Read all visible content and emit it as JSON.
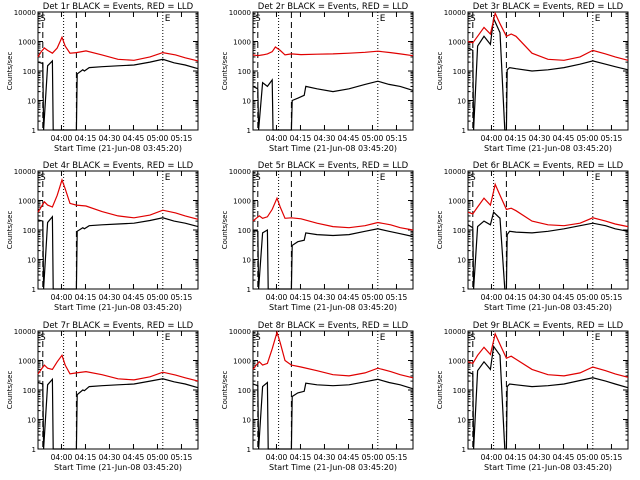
{
  "colors": {
    "events": "#000000",
    "lld": "#e00000",
    "axes": "#000000",
    "background": "#ffffff"
  },
  "shared": {
    "xlabel": "Start Time (21-Jun-08 03:45:20)",
    "ylabel": "Counts/sec",
    "y_scale": "log",
    "ylim": [
      1,
      10000
    ],
    "y_ticks": [
      "1",
      "10",
      "100",
      "1000",
      "10000"
    ],
    "x_range_min_after_start": [
      0,
      100
    ],
    "x_ticks": [
      "04:00",
      "04:15",
      "04:30",
      "04:45",
      "05:00",
      "05:15"
    ],
    "x_tick_minutes": [
      14.67,
      29.67,
      44.67,
      59.67,
      74.67,
      89.67
    ],
    "markers": {
      "S": "S",
      "E": "E"
    },
    "dashed_lines_min": [
      3.0,
      24.0
    ],
    "dotted_lines_min": [
      16.0,
      78.0
    ]
  },
  "chart_data": [
    {
      "type": "line",
      "title": "Det 1r BLACK = Events, RED = LLD",
      "series": [
        {
          "name": "Events",
          "x": [
            0,
            3,
            3.5,
            6,
            9,
            9.5,
            24,
            24.5,
            28,
            29,
            32,
            40,
            50,
            60,
            70,
            78,
            85,
            92,
            100
          ],
          "y": [
            200,
            180,
            1,
            150,
            220,
            1,
            1,
            80,
            110,
            100,
            130,
            140,
            150,
            160,
            200,
            250,
            190,
            160,
            120
          ]
        },
        {
          "name": "LLD",
          "x": [
            0,
            2,
            4,
            6,
            9,
            12,
            15,
            17,
            20,
            24,
            30,
            40,
            50,
            60,
            70,
            78,
            86,
            92,
            100
          ],
          "y": [
            300,
            450,
            600,
            500,
            400,
            600,
            1400,
            700,
            400,
            420,
            480,
            350,
            250,
            230,
            300,
            420,
            350,
            280,
            220
          ]
        }
      ]
    },
    {
      "type": "line",
      "title": "Det 2r BLACK = Events, RED = LLD",
      "series": [
        {
          "name": "Events",
          "x": [
            0,
            3,
            3.5,
            6,
            9,
            12,
            12.5,
            24,
            24.5,
            28,
            32,
            33,
            40,
            50,
            60,
            70,
            78,
            85,
            92,
            100
          ],
          "y": [
            30,
            25,
            1,
            40,
            30,
            50,
            1,
            1,
            10,
            12,
            15,
            30,
            25,
            20,
            25,
            35,
            45,
            35,
            30,
            22
          ]
        },
        {
          "name": "LLD",
          "x": [
            0,
            3,
            6,
            9,
            12,
            14,
            17,
            20,
            24,
            30,
            40,
            50,
            60,
            70,
            78,
            86,
            92,
            100
          ],
          "y": [
            350,
            330,
            350,
            380,
            450,
            650,
            500,
            350,
            380,
            360,
            370,
            380,
            400,
            430,
            470,
            420,
            380,
            330
          ]
        }
      ]
    },
    {
      "type": "line",
      "title": "Det 3r BLACK = Events, RED = LLD",
      "series": [
        {
          "name": "Events",
          "x": [
            0,
            3,
            3.5,
            6,
            10,
            14,
            16,
            20,
            23,
            24,
            24.5,
            26,
            30,
            40,
            50,
            60,
            70,
            78,
            86,
            92,
            100
          ],
          "y": [
            600,
            500,
            1,
            700,
            1500,
            800,
            6000,
            2000,
            1,
            1,
            110,
            130,
            120,
            100,
            110,
            130,
            170,
            220,
            170,
            140,
            110
          ]
        },
        {
          "name": "LLD",
          "x": [
            0,
            3,
            6,
            10,
            14,
            17,
            20,
            24,
            27,
            30,
            40,
            50,
            60,
            70,
            78,
            86,
            92,
            100
          ],
          "y": [
            1000,
            900,
            1500,
            3000,
            1800,
            9000,
            4000,
            1500,
            1800,
            1500,
            400,
            250,
            230,
            300,
            500,
            380,
            300,
            230
          ]
        }
      ]
    },
    {
      "type": "line",
      "title": "Det 4r BLACK = Events, RED = LLD",
      "series": [
        {
          "name": "Events",
          "x": [
            0,
            3,
            3.5,
            6,
            9,
            9.5,
            24,
            24.5,
            28,
            29,
            32,
            40,
            50,
            60,
            70,
            78,
            85,
            92,
            100
          ],
          "y": [
            220,
            200,
            1,
            180,
            280,
            1,
            1,
            90,
            120,
            110,
            140,
            150,
            160,
            170,
            210,
            260,
            200,
            170,
            130
          ]
        },
        {
          "name": "LLD",
          "x": [
            0,
            2,
            4,
            6,
            9,
            12,
            15,
            17,
            20,
            24,
            30,
            40,
            50,
            60,
            70,
            78,
            86,
            92,
            100
          ],
          "y": [
            400,
            600,
            900,
            700,
            600,
            1500,
            5000,
            2500,
            800,
            700,
            650,
            420,
            300,
            260,
            320,
            470,
            380,
            300,
            230
          ]
        }
      ]
    },
    {
      "type": "line",
      "title": "Det 5r BLACK = Events, RED = LLD",
      "series": [
        {
          "name": "Events",
          "x": [
            0,
            3,
            3.5,
            6,
            9,
            9.5,
            24,
            24.5,
            28,
            32,
            33,
            40,
            50,
            60,
            70,
            78,
            85,
            92,
            100
          ],
          "y": [
            100,
            90,
            1,
            80,
            100,
            1,
            1,
            30,
            40,
            45,
            80,
            70,
            65,
            70,
            90,
            110,
            90,
            75,
            60
          ]
        },
        {
          "name": "LLD",
          "x": [
            0,
            2,
            4,
            6,
            9,
            12,
            15,
            17,
            20,
            24,
            30,
            40,
            50,
            60,
            70,
            78,
            86,
            92,
            100
          ],
          "y": [
            200,
            250,
            300,
            250,
            280,
            500,
            1200,
            600,
            250,
            260,
            240,
            170,
            130,
            120,
            140,
            180,
            150,
            120,
            100
          ]
        }
      ]
    },
    {
      "type": "line",
      "title": "Det 6r BLACK = Events, RED = LLD",
      "series": [
        {
          "name": "Events",
          "x": [
            0,
            3,
            3.5,
            6,
            10,
            14,
            16,
            20,
            23,
            24,
            24.5,
            26,
            30,
            40,
            50,
            60,
            70,
            78,
            86,
            92,
            100
          ],
          "y": [
            150,
            120,
            1,
            130,
            200,
            150,
            400,
            250,
            1,
            1,
            70,
            90,
            85,
            80,
            90,
            110,
            140,
            170,
            140,
            110,
            90
          ]
        },
        {
          "name": "LLD",
          "x": [
            0,
            3,
            6,
            10,
            14,
            17,
            20,
            24,
            27,
            30,
            40,
            50,
            60,
            70,
            78,
            86,
            92,
            100
          ],
          "y": [
            400,
            350,
            600,
            1200,
            700,
            3500,
            1500,
            500,
            550,
            450,
            200,
            150,
            140,
            170,
            260,
            200,
            160,
            130
          ]
        }
      ]
    },
    {
      "type": "line",
      "title": "Det 7r BLACK = Events, RED = LLD",
      "series": [
        {
          "name": "Events",
          "x": [
            0,
            3,
            3.5,
            6,
            9,
            9.5,
            24,
            24.5,
            28,
            29,
            32,
            40,
            50,
            60,
            70,
            78,
            85,
            92,
            100
          ],
          "y": [
            180,
            160,
            1,
            150,
            230,
            1,
            1,
            70,
            100,
            95,
            130,
            140,
            150,
            160,
            200,
            240,
            190,
            160,
            120
          ]
        },
        {
          "name": "LLD",
          "x": [
            0,
            2,
            4,
            6,
            9,
            12,
            15,
            17,
            20,
            24,
            30,
            40,
            50,
            60,
            70,
            78,
            86,
            92,
            100
          ],
          "y": [
            350,
            500,
            700,
            550,
            500,
            900,
            1500,
            700,
            350,
            380,
            420,
            330,
            240,
            220,
            280,
            400,
            320,
            260,
            200
          ]
        }
      ]
    },
    {
      "type": "line",
      "title": "Det 8r BLACK = Events, RED = LLD",
      "series": [
        {
          "name": "Events",
          "x": [
            0,
            3,
            3.5,
            6,
            9,
            9.5,
            24,
            24.5,
            28,
            32,
            33,
            40,
            50,
            60,
            70,
            78,
            85,
            92,
            100
          ],
          "y": [
            160,
            140,
            1,
            130,
            180,
            1,
            1,
            60,
            80,
            90,
            170,
            150,
            140,
            150,
            190,
            230,
            180,
            150,
            110
          ]
        },
        {
          "name": "LLD",
          "x": [
            0,
            2,
            4,
            6,
            9,
            12,
            15,
            17,
            20,
            24,
            30,
            40,
            50,
            60,
            70,
            78,
            86,
            92,
            100
          ],
          "y": [
            500,
            700,
            900,
            700,
            800,
            2500,
            9000,
            4000,
            1000,
            700,
            600,
            450,
            330,
            300,
            380,
            550,
            420,
            330,
            260
          ]
        }
      ]
    },
    {
      "type": "line",
      "title": "Det 9r BLACK = Events, RED = LLD",
      "series": [
        {
          "name": "Events",
          "x": [
            0,
            3,
            3.5,
            6,
            10,
            14,
            16,
            20,
            23,
            24,
            24.5,
            26,
            30,
            40,
            50,
            60,
            70,
            78,
            86,
            92,
            100
          ],
          "y": [
            400,
            350,
            1,
            450,
            900,
            500,
            3000,
            1500,
            1,
            1,
            130,
            160,
            150,
            130,
            140,
            160,
            210,
            260,
            200,
            160,
            120
          ]
        },
        {
          "name": "LLD",
          "x": [
            0,
            3,
            6,
            10,
            14,
            17,
            20,
            24,
            27,
            30,
            40,
            50,
            60,
            70,
            78,
            86,
            92,
            100
          ],
          "y": [
            900,
            800,
            1500,
            2800,
            1600,
            8000,
            3500,
            1200,
            1400,
            1100,
            500,
            330,
            300,
            380,
            600,
            450,
            350,
            270
          ]
        }
      ]
    }
  ]
}
